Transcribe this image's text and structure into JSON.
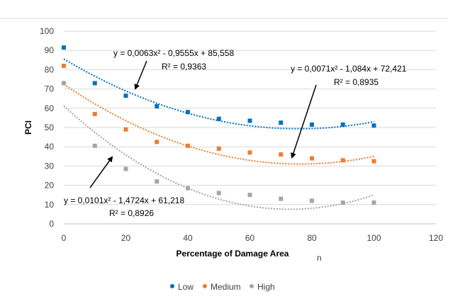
{
  "chart_data": {
    "type": "scatter",
    "title": "",
    "xlabel": "Percentage of Damage Area",
    "xlabel_suffix": "n",
    "ylabel": "PCI",
    "xlim": [
      0,
      120
    ],
    "ylim": [
      0,
      100
    ],
    "x_ticks": [
      "0",
      "20",
      "40",
      "60",
      "80",
      "100",
      "120"
    ],
    "y_ticks": [
      "0",
      "10",
      "20",
      "30",
      "40",
      "50",
      "60",
      "70",
      "80",
      "90",
      "100"
    ],
    "grid": "horizontal",
    "legend_position": "bottom",
    "x": [
      0,
      10,
      20,
      30,
      40,
      50,
      60,
      70,
      80,
      90,
      100
    ],
    "series": [
      {
        "name": "Low",
        "color": "#0070C0",
        "values": [
          91.5,
          73,
          66.5,
          61,
          58,
          54.5,
          53.5,
          52.5,
          51.5,
          51.5,
          51
        ],
        "trend": {
          "a": 0.0063,
          "b": -0.9555,
          "c": 85.558
        }
      },
      {
        "name": "Medium",
        "color": "#ED7D31",
        "values": [
          82,
          57,
          49,
          42.5,
          40.5,
          39,
          37,
          36,
          34,
          33,
          32.5
        ],
        "trend": {
          "a": 0.0071,
          "b": -1.084,
          "c": 72.421
        }
      },
      {
        "name": "High",
        "color": "#A5A5A5",
        "values": [
          73,
          40.5,
          28.5,
          22,
          18.5,
          16,
          15,
          13,
          12,
          11,
          11
        ],
        "trend": {
          "a": 0.0101,
          "b": -1.4724,
          "c": 61.218
        }
      }
    ],
    "annotations": [
      {
        "id": "low",
        "equation": "y = 0,0063x² - 0,9555x + 85,558",
        "r2": "R² = 0,9363"
      },
      {
        "id": "medium",
        "equation": "y = 0,0071x² - 1,084x + 72,421",
        "r2": "R² = 0,8935"
      },
      {
        "id": "high",
        "equation": "y = 0,0101x² - 1,4724x + 61,218",
        "r2": "R² = 0,8926"
      }
    ]
  }
}
